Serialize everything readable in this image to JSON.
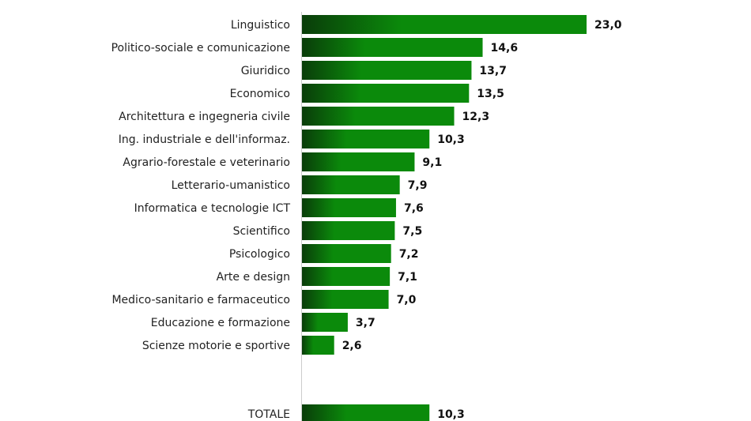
{
  "chart_data": {
    "type": "bar",
    "orientation": "horizontal",
    "categories": [
      "Linguistico",
      "Politico-sociale e comunicazione",
      "Giuridico",
      "Economico",
      "Architettura e ingegneria civile",
      "Ing. industriale e dell'informaz.",
      "Agrario-forestale e veterinario",
      "Letterario-umanistico",
      "Informatica e tecnologie ICT",
      "Scientifico",
      "Psicologico",
      "Arte e design",
      "Medico-sanitario e farmaceutico",
      "Educazione e formazione",
      "Scienze motorie e sportive",
      "TOTALE"
    ],
    "values": [
      23.0,
      14.6,
      13.7,
      13.5,
      12.3,
      10.3,
      9.1,
      7.9,
      7.6,
      7.5,
      7.2,
      7.1,
      7.0,
      3.7,
      2.6,
      10.3
    ],
    "value_labels": [
      "23,0",
      "14,6",
      "13,7",
      "13,5",
      "12,3",
      "10,3",
      "9,1",
      "7,9",
      "7,6",
      "7,5",
      "7,2",
      "7,1",
      "7,0",
      "3,7",
      "2,6",
      "10,3"
    ],
    "xlim": [
      0,
      23.0
    ],
    "grid": false,
    "legend": "none",
    "title": "",
    "xlabel": "",
    "ylabel": "",
    "colors": {
      "bar_dark": "#0a3d0a",
      "bar_light": "#0b8a0b",
      "axis": "#cccccc"
    }
  }
}
